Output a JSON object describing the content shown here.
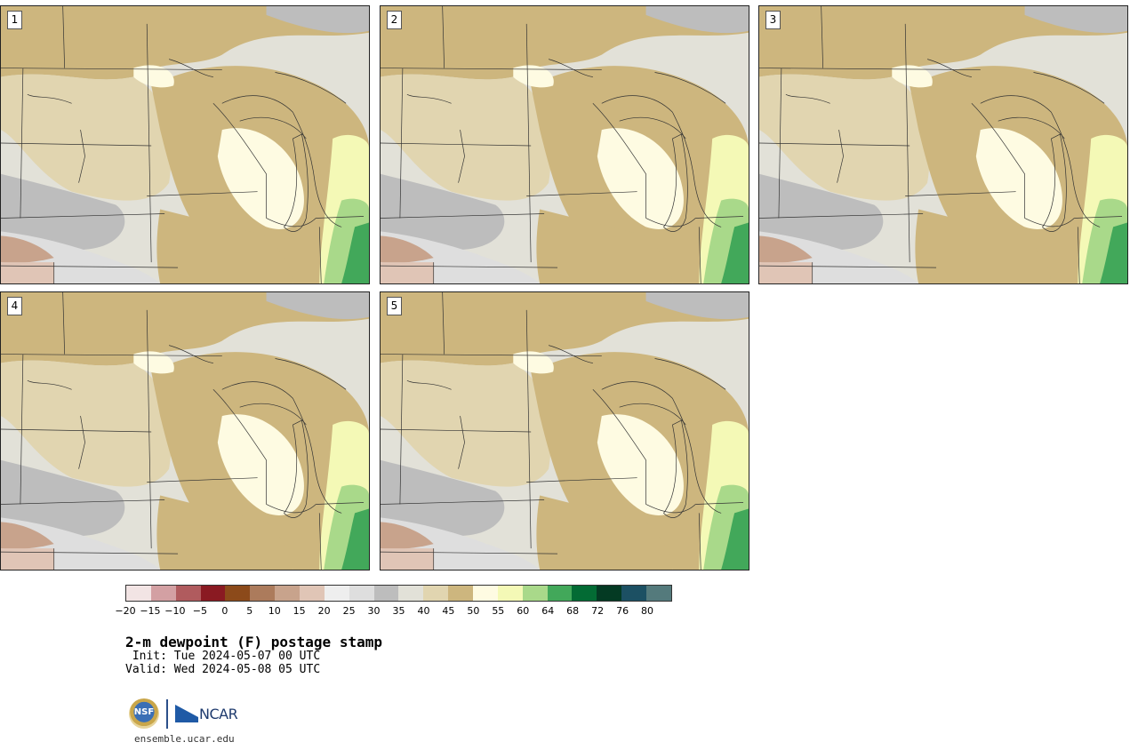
{
  "panels": [
    {
      "label": "1"
    },
    {
      "label": "2"
    },
    {
      "label": "3"
    },
    {
      "label": "4"
    },
    {
      "label": "5"
    }
  ],
  "colorbar": {
    "colors": [
      "#f2e4e4",
      "#d3a0a3",
      "#b05b5e",
      "#8a1a22",
      "#8c4a1a",
      "#ac7b5c",
      "#c8a38c",
      "#e0c5b6",
      "#eeeeee",
      "#dedede",
      "#bdbdbd",
      "#e2e1d8",
      "#e1d5b0",
      "#cdb67e",
      "#fefbe2",
      "#f4f9b6",
      "#a9d98a",
      "#42a85a",
      "#036b34",
      "#043a23",
      "#1c5063",
      "#547a7c"
    ],
    "tick_labels": [
      "−20",
      "−15",
      "−10",
      "−5",
      "0",
      "5",
      "10",
      "15",
      "20",
      "25",
      "30",
      "35",
      "40",
      "45",
      "50",
      "55",
      "60",
      "64",
      "68",
      "72",
      "76",
      "80"
    ]
  },
  "header": {
    "title": "2-m dewpoint (F) postage stamp",
    "init": " Init: Tue 2024-05-07 00 UTC",
    "valid": "Valid: Wed 2024-05-08 05 UTC"
  },
  "logos": {
    "nsf": "NSF",
    "ncar": "NCAR"
  },
  "footer": {
    "url": "ensemble.ucar.edu"
  }
}
